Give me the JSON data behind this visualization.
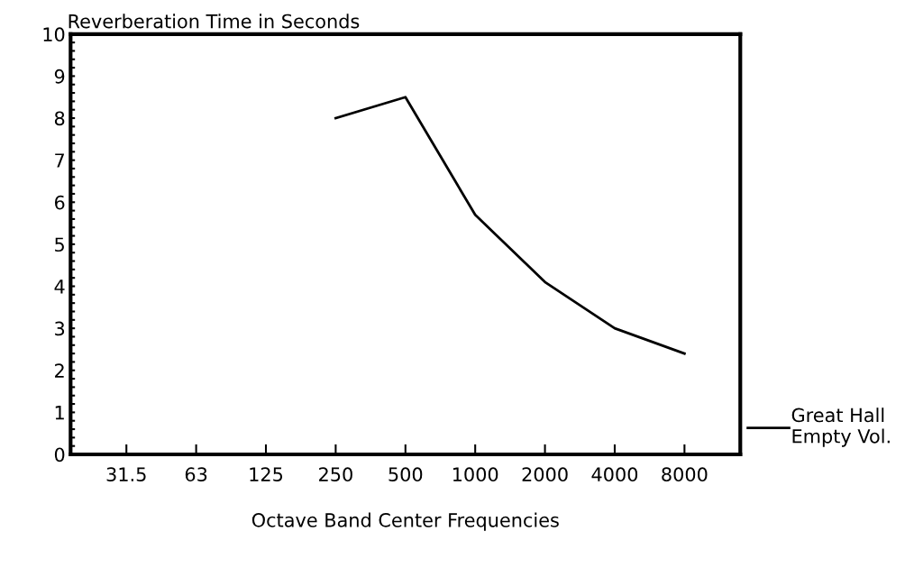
{
  "chart_data": {
    "type": "line",
    "ylabel": "Reverberation Time in Seconds",
    "xlabel": "Octave Band Center Frequencies",
    "categories": [
      "31.5",
      "63",
      "125",
      "250",
      "500",
      "1000",
      "2000",
      "4000",
      "8000"
    ],
    "series": [
      {
        "name": "Great Hall\nEmpty Vol.",
        "color": "#000000",
        "values": [
          null,
          null,
          null,
          8.0,
          8.5,
          5.7,
          4.1,
          3.0,
          2.4
        ]
      }
    ],
    "ylim": [
      0,
      10
    ],
    "yticks": [
      0,
      {
        "value": 0.2,
        "label": null
      },
      {
        "value": 0.4,
        "label": null
      },
      {
        "value": 0.6,
        "label": null
      },
      {
        "value": 0.8,
        "label": null
      },
      1,
      {
        "value": 1.2,
        "label": null
      },
      {
        "value": 1.4,
        "label": null
      },
      {
        "value": 1.6,
        "label": null
      },
      {
        "value": 1.8,
        "label": null
      },
      2,
      {
        "value": 2.2,
        "label": null
      },
      {
        "value": 2.4,
        "label": null
      },
      {
        "value": 2.6,
        "label": null
      },
      {
        "value": 2.8,
        "label": null
      },
      3,
      {
        "value": 3.2,
        "label": null
      },
      {
        "value": 3.4,
        "label": null
      },
      {
        "value": 3.6,
        "label": null
      },
      {
        "value": 3.8,
        "label": null
      },
      4,
      {
        "value": 4.2,
        "label": null
      },
      {
        "value": 4.4,
        "label": null
      },
      {
        "value": 4.6,
        "label": null
      },
      {
        "value": 4.8,
        "label": null
      },
      5,
      {
        "value": 5.2,
        "label": null
      },
      {
        "value": 5.4,
        "label": null
      },
      {
        "value": 5.6,
        "label": null
      },
      {
        "value": 5.8,
        "label": null
      },
      6,
      {
        "value": 6.2,
        "label": null
      },
      {
        "value": 6.4,
        "label": null
      },
      {
        "value": 6.6,
        "label": null
      },
      {
        "value": 6.8,
        "label": null
      },
      7,
      {
        "value": 7.2,
        "label": null
      },
      {
        "value": 7.4,
        "label": null
      },
      {
        "value": 7.6,
        "label": null
      },
      {
        "value": 7.8,
        "label": null
      },
      8,
      {
        "value": 8.2,
        "label": null
      },
      {
        "value": 8.4,
        "label": null
      },
      {
        "value": 8.6,
        "label": null
      },
      {
        "value": 8.8,
        "label": null
      },
      9,
      {
        "value": 9.2,
        "label": null
      },
      {
        "value": 9.4,
        "label": null
      },
      {
        "value": 9.6,
        "label": null
      },
      {
        "value": 9.8,
        "label": null
      },
      10
    ],
    "grid": false,
    "legend": "right",
    "marker": "none",
    "line_style": "solid"
  }
}
